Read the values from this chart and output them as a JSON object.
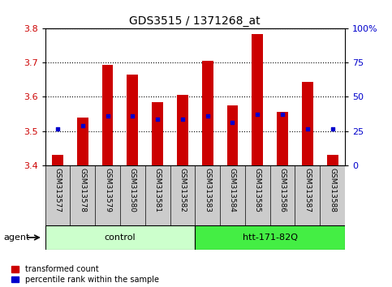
{
  "title": "GDS3515 / 1371268_at",
  "samples": [
    "GSM313577",
    "GSM313578",
    "GSM313579",
    "GSM313580",
    "GSM313581",
    "GSM313582",
    "GSM313583",
    "GSM313584",
    "GSM313585",
    "GSM313586",
    "GSM313587",
    "GSM313588"
  ],
  "transformed_count": [
    3.43,
    3.54,
    3.695,
    3.665,
    3.585,
    3.605,
    3.705,
    3.575,
    3.785,
    3.555,
    3.645,
    3.43
  ],
  "percentile_rank_value": [
    3.505,
    3.515,
    3.545,
    3.545,
    3.535,
    3.535,
    3.545,
    3.525,
    3.548,
    3.548,
    3.505,
    3.505
  ],
  "groups": [
    {
      "label": "control",
      "start": 0,
      "end": 6,
      "color": "#ccffcc"
    },
    {
      "label": "htt-171-82Q",
      "start": 6,
      "end": 12,
      "color": "#44ee44"
    }
  ],
  "ylim_left": [
    3.4,
    3.8
  ],
  "ylim_right": [
    0,
    100
  ],
  "yticks_left": [
    3.4,
    3.5,
    3.6,
    3.7,
    3.8
  ],
  "yticks_right": [
    0,
    25,
    50,
    75,
    100
  ],
  "ytick_labels_right": [
    "0",
    "25",
    "50",
    "75",
    "100%"
  ],
  "bar_color": "#cc0000",
  "dot_color": "#0000cc",
  "bar_width": 0.45,
  "grid_color": "#000000",
  "background_plot": "#ffffff",
  "left_tick_color": "#cc0000",
  "right_tick_color": "#0000cc",
  "legend_red_label": "transformed count",
  "legend_blue_label": "percentile rank within the sample",
  "agent_label": "agent",
  "figure_bg": "#ffffff",
  "xticklabel_bg": "#cccccc"
}
